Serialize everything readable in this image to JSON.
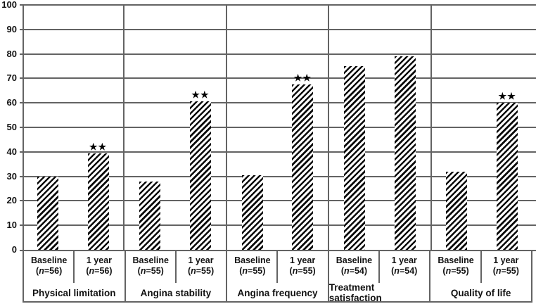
{
  "figure": {
    "background": "#ffffff",
    "grid_color": "#636363",
    "text_color": "#111111",
    "bar_fill_description": "black diagonal hatch (/) on white"
  },
  "chart_data": {
    "type": "bar",
    "title": "",
    "xlabel": "",
    "ylabel": "",
    "ylim": [
      0,
      100
    ],
    "yticks": [
      100,
      90,
      80,
      70,
      60,
      50,
      40,
      30,
      20,
      10,
      0
    ],
    "gridlines": "horizontal, every 10",
    "legend_position": "none",
    "groups": [
      {
        "label": "Physical limitation",
        "bars": [
          {
            "category": "Baseline",
            "n_label": "(n=56)",
            "value": 30,
            "annotation": ""
          },
          {
            "category": "1 year",
            "n_label": "(n=56)",
            "value": 39.5,
            "annotation": "★★"
          }
        ]
      },
      {
        "label": "Angina stability",
        "bars": [
          {
            "category": "Baseline",
            "n_label": "(n=55)",
            "value": 28,
            "annotation": ""
          },
          {
            "category": "1 year",
            "n_label": "(n=55)",
            "value": 60.5,
            "annotation": "★★"
          }
        ]
      },
      {
        "label": "Angina frequency",
        "bars": [
          {
            "category": "Baseline",
            "n_label": "(n=55)",
            "value": 30.5,
            "annotation": ""
          },
          {
            "category": "1 year",
            "n_label": "(n=55)",
            "value": 67.5,
            "annotation": "★★"
          }
        ]
      },
      {
        "label": "Treatment satisfaction",
        "bars": [
          {
            "category": "Baseline",
            "n_label": "(n=54)",
            "value": 75,
            "annotation": ""
          },
          {
            "category": "1 year",
            "n_label": "(n=54)",
            "value": 79,
            "annotation": ""
          }
        ]
      },
      {
        "label": "Quality of life",
        "bars": [
          {
            "category": "Baseline",
            "n_label": "(n=55)",
            "value": 32,
            "annotation": ""
          },
          {
            "category": "1 year",
            "n_label": "(n=55)",
            "value": 60,
            "annotation": "★★"
          }
        ]
      }
    ]
  }
}
